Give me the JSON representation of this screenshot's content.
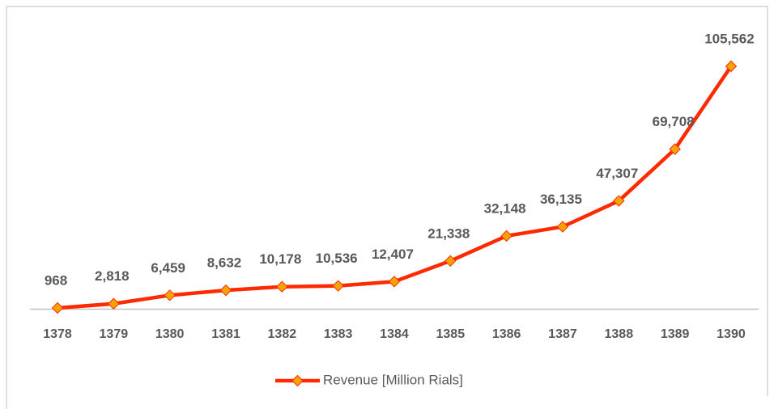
{
  "chart_data": {
    "type": "line",
    "categories": [
      "1378",
      "1379",
      "1380",
      "1381",
      "1382",
      "1383",
      "1384",
      "1385",
      "1386",
      "1387",
      "1388",
      "1389",
      "1390"
    ],
    "series": [
      {
        "name": "Revenue [Million Rials]",
        "color": "#ff2a00",
        "marker_color": "#f5a300",
        "values": [
          968,
          2818,
          6459,
          8632,
          10178,
          10536,
          12407,
          21338,
          32148,
          36135,
          47307,
          69708,
          105562
        ],
        "value_labels": [
          "968",
          "2,818",
          "6,459",
          "8,632",
          "10,178",
          "10,536",
          "12,407",
          "21,338",
          "32,148",
          "36,135",
          "47,307",
          "69,708",
          "105,562"
        ]
      }
    ],
    "ylim": [
      0,
      110000
    ]
  }
}
